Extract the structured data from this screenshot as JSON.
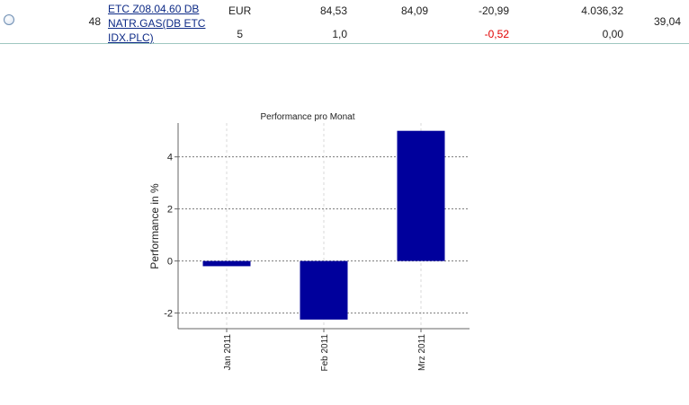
{
  "position": {
    "nr": "48",
    "name": "ETC Z08.04.60 DB NATR.GAS(DB ETC IDX.PLC)",
    "currency": "EUR",
    "quantity": "5",
    "price_current": "84,53",
    "price_other": "84,09",
    "factor": "1,0",
    "change_abs": "-20,99",
    "change_pct": "-0,52",
    "value": "4.036,32",
    "value_second": "0,00",
    "share": "39,04"
  },
  "chart_data": {
    "type": "bar",
    "title": "Performance pro Monat",
    "ylabel": "Performance in %",
    "xlabel": "",
    "categories": [
      "Jan 2011",
      "Feb 2011",
      "Mrz 2011"
    ],
    "values": [
      -0.2,
      -2.25,
      5.0
    ],
    "ylim": [
      -2.6,
      5.3
    ],
    "yticks": [
      -2,
      0,
      2,
      4
    ],
    "ytick_labels": [
      "-2",
      "0",
      "2",
      "4"
    ],
    "grid": true,
    "bar_color": "#00009c"
  }
}
